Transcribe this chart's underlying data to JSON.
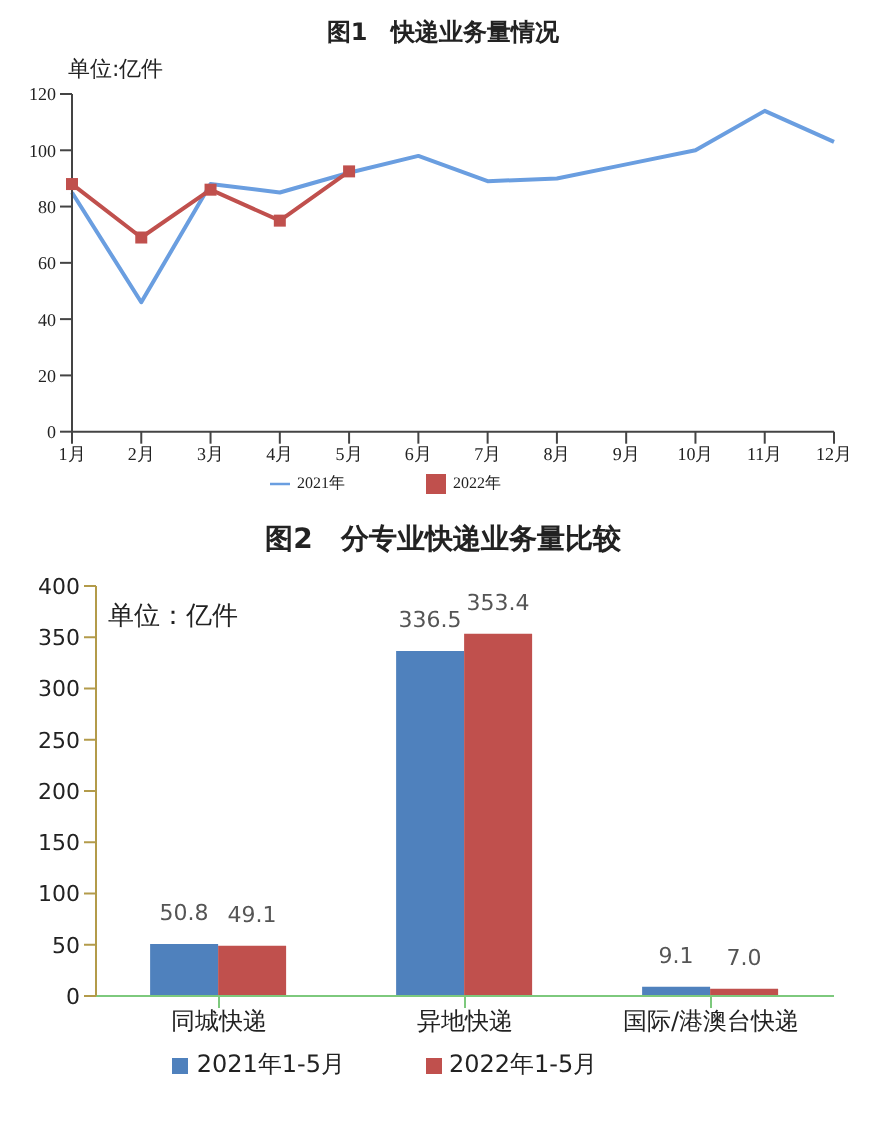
{
  "chart_data": [
    {
      "type": "line",
      "title": "图1　快递业务量情况",
      "annotations": [
        "单位:亿件"
      ],
      "categories": [
        "1月",
        "2月",
        "3月",
        "4月",
        "5月",
        "6月",
        "7月",
        "8月",
        "9月",
        "10月",
        "11月",
        "12月"
      ],
      "ylim": [
        0,
        120
      ],
      "yticks": [
        0,
        20,
        40,
        60,
        80,
        100,
        120
      ],
      "legend": "bottom",
      "series": [
        {
          "name": "2021年",
          "color": "#6a9ee0",
          "marker": "none",
          "values": [
            85,
            46,
            88,
            85,
            92,
            98,
            89,
            90,
            95,
            100,
            114,
            103
          ]
        },
        {
          "name": "2022年",
          "color": "#c0504d",
          "marker": "square",
          "values": [
            88,
            69,
            86,
            75,
            92.5,
            null,
            null,
            null,
            null,
            null,
            null,
            null
          ]
        }
      ]
    },
    {
      "type": "bar",
      "title": "图2　分专业快递业务量比较",
      "annotations": [
        "单位：亿件"
      ],
      "categories": [
        "同城快递",
        "异地快递",
        "国际/港澳台快递"
      ],
      "ylim": [
        0,
        400
      ],
      "yticks": [
        0,
        50,
        100,
        150,
        200,
        250,
        300,
        350,
        400
      ],
      "legend": "bottom",
      "series": [
        {
          "name": "2021年1-5月",
          "color": "#4f81bd",
          "values": [
            50.8,
            336.5,
            9.1
          ],
          "value_labels": [
            "50.8",
            "336.5",
            "9.1"
          ]
        },
        {
          "name": "2022年1-5月",
          "color": "#c0504d",
          "values": [
            49.1,
            353.4,
            7.0
          ],
          "value_labels": [
            "49.1",
            "353.4",
            "7.0"
          ]
        }
      ]
    }
  ]
}
